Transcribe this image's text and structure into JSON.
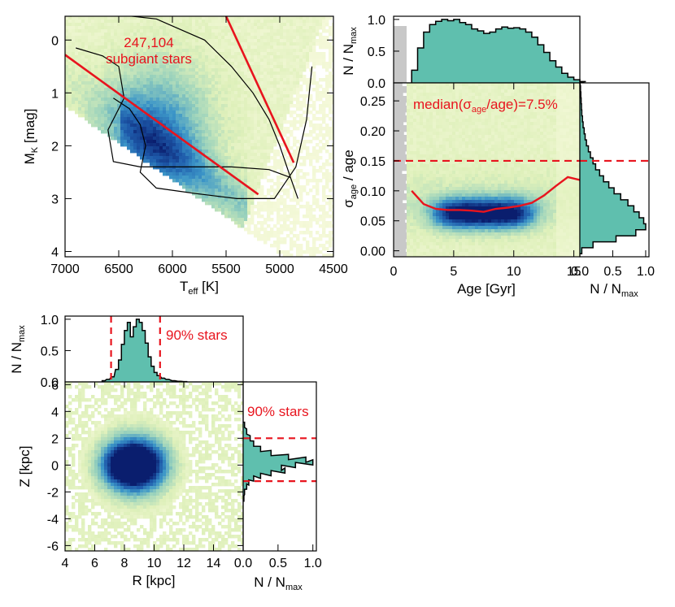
{
  "chart_data": [
    {
      "id": "hr",
      "type": "heatmap",
      "title": "",
      "xlabel": "T",
      "xlabel_sub": "eff",
      "xlabel_unit": " [K]",
      "ylabel": "M",
      "ylabel_sub": "K",
      "ylabel_unit": " [mag]",
      "xlim": [
        7000,
        4500
      ],
      "ylim": [
        4.1,
        -0.45
      ],
      "xticks": [
        7000,
        6500,
        6000,
        5500,
        5000,
        4500
      ],
      "yticks": [
        0,
        1,
        2,
        3,
        4
      ],
      "annotation_count": "247,104",
      "annotation_label": "subgiant stars",
      "selection_lines": [
        {
          "x": [
            7000,
            5200
          ],
          "y": [
            0.28,
            2.92
          ]
        },
        {
          "x": [
            5500,
            4870
          ],
          "y": [
            -0.45,
            2.32
          ]
        }
      ],
      "isochrones": [
        {
          "x": [
            6950,
            6600,
            6150,
            5700,
            5450,
            5250,
            5100,
            5000,
            4900,
            4830
          ],
          "y": [
            -0.45,
            -0.5,
            -0.4,
            0.0,
            0.5,
            1.0,
            1.5,
            2.0,
            2.6,
            3.0
          ]
        },
        {
          "x": [
            6900,
            6650,
            6500,
            6450,
            6600,
            6550,
            6300,
            5900,
            5450,
            5100,
            4900
          ],
          "y": [
            0.15,
            0.3,
            0.5,
            1.1,
            1.7,
            2.3,
            2.4,
            2.4,
            2.4,
            2.45,
            2.6
          ]
        },
        {
          "x": [
            6550,
            6400,
            6300,
            6250,
            6300,
            6150,
            5800,
            5400,
            5050,
            4850,
            4750,
            4700
          ],
          "y": [
            1.1,
            1.3,
            1.6,
            2.0,
            2.5,
            2.8,
            2.9,
            3.0,
            3.0,
            2.4,
            1.5,
            0.5
          ]
        }
      ]
    },
    {
      "id": "age_top",
      "type": "area",
      "ylabel": "N / N",
      "ylabel_sub": "max",
      "xlim": [
        0,
        15.5
      ],
      "ylim": [
        0,
        1.05
      ],
      "yticks": [
        0.0,
        0.5,
        1.0
      ],
      "x": [
        1.5,
        2,
        2.5,
        3,
        3.5,
        4,
        4.5,
        5,
        5.5,
        6,
        6.5,
        7,
        7.5,
        8,
        8.5,
        9,
        9.5,
        10,
        10.5,
        11,
        11.5,
        12,
        12.5,
        13,
        13.5,
        14,
        14.5,
        15,
        15.5
      ],
      "values": [
        0.2,
        0.55,
        0.8,
        0.92,
        0.97,
        1.0,
        0.98,
        1.0,
        0.95,
        0.92,
        0.85,
        0.82,
        0.78,
        0.8,
        0.85,
        0.88,
        0.86,
        0.87,
        0.85,
        0.8,
        0.72,
        0.6,
        0.48,
        0.35,
        0.25,
        0.15,
        0.09,
        0.05,
        0.02
      ]
    },
    {
      "id": "age_err",
      "type": "heatmap",
      "xlabel": "Age [Gyr]",
      "ylabel": "σ",
      "ylabel_sub": "age",
      "ylabel_unit": " / age",
      "xlim": [
        0,
        15.5
      ],
      "ylim": [
        -0.01,
        0.28
      ],
      "xticks": [
        0,
        5,
        10,
        15
      ],
      "xtick_labels": [
        "0",
        "5",
        "10",
        "15"
      ],
      "yticks": [
        0.0,
        0.05,
        0.1,
        0.15,
        0.2,
        0.25
      ],
      "ytick_labels": [
        "0.00",
        "0.05",
        "0.10",
        "0.15",
        "0.20",
        "0.25"
      ],
      "threshold": 0.15,
      "median_label_pre": "median(σ",
      "median_label_sub": "age",
      "median_label_post": "/age)=7.5%",
      "median_curve": {
        "x": [
          1.5,
          2.5,
          3.5,
          4.5,
          5.5,
          6.5,
          7.5,
          8.5,
          9.5,
          10.5,
          11.5,
          12.5,
          13.5,
          14.5,
          15.5
        ],
        "y": [
          0.1,
          0.078,
          0.07,
          0.068,
          0.068,
          0.067,
          0.065,
          0.07,
          0.072,
          0.075,
          0.08,
          0.092,
          0.108,
          0.123,
          0.118
        ]
      }
    },
    {
      "id": "age_right",
      "type": "area",
      "xlabel": "N / N",
      "xlabel_sub": "max",
      "xlim": [
        0,
        1.05
      ],
      "xticks": [
        0.0,
        0.5,
        1.0
      ],
      "xtick_labels": [
        "0.0",
        "0.5",
        "1.0"
      ],
      "y": [
        0.0,
        0.01,
        0.02,
        0.03,
        0.04,
        0.05,
        0.06,
        0.07,
        0.08,
        0.09,
        0.1,
        0.11,
        0.12,
        0.13,
        0.14,
        0.15,
        0.16,
        0.17,
        0.18,
        0.19,
        0.2,
        0.21,
        0.22,
        0.23,
        0.24,
        0.25,
        0.26,
        0.27
      ],
      "values": [
        0.03,
        0.2,
        0.55,
        0.85,
        1.0,
        0.97,
        0.9,
        0.82,
        0.73,
        0.62,
        0.52,
        0.44,
        0.36,
        0.3,
        0.24,
        0.2,
        0.16,
        0.13,
        0.1,
        0.08,
        0.065,
        0.05,
        0.04,
        0.03,
        0.025,
        0.02,
        0.015,
        0.01
      ]
    },
    {
      "id": "r_top",
      "type": "area",
      "ylabel": "N / N",
      "ylabel_sub": "max",
      "xlim": [
        4,
        16
      ],
      "ylim": [
        0,
        1.05
      ],
      "yticks": [
        0.0,
        0.5,
        1.0
      ],
      "percent_label": "90% stars",
      "bounds": [
        7.1,
        10.4
      ],
      "x": [
        6.5,
        6.8,
        7.1,
        7.4,
        7.6,
        7.8,
        8.0,
        8.2,
        8.4,
        8.6,
        8.8,
        9.0,
        9.2,
        9.4,
        9.6,
        9.8,
        10.0,
        10.2,
        10.5,
        10.8,
        11.2,
        11.6,
        12.0
      ],
      "values": [
        0.02,
        0.04,
        0.08,
        0.2,
        0.35,
        0.6,
        0.82,
        0.95,
        0.72,
        0.88,
        1.0,
        0.95,
        0.82,
        0.62,
        0.4,
        0.25,
        0.15,
        0.1,
        0.06,
        0.04,
        0.02,
        0.01,
        0.005
      ]
    },
    {
      "id": "rz",
      "type": "heatmap",
      "xlabel": "R [kpc]",
      "ylabel": "Z [kpc]",
      "xlim": [
        4,
        16
      ],
      "ylim": [
        -6.4,
        6.2
      ],
      "xticks": [
        4,
        6,
        8,
        10,
        12,
        14
      ],
      "yticks": [
        6,
        4,
        2,
        0,
        -2,
        -4,
        -6
      ]
    },
    {
      "id": "z_right",
      "type": "area",
      "xlabel": "N / N",
      "xlabel_sub": "max",
      "xlim": [
        0,
        1.05
      ],
      "xticks": [
        0.0,
        0.5,
        1.0
      ],
      "xtick_labels": [
        "0.0",
        "0.5",
        "1.0"
      ],
      "percent_label": "90% stars",
      "bounds": [
        2.0,
        -1.2
      ],
      "y": [
        3.0,
        2.5,
        2.0,
        1.6,
        1.2,
        0.9,
        0.6,
        0.4,
        0.2,
        0.0,
        -0.2,
        -0.4,
        -0.6,
        -0.8,
        -1.0,
        -1.3,
        -1.6,
        -2.0,
        -2.5
      ],
      "values": [
        0.02,
        0.05,
        0.1,
        0.15,
        0.25,
        0.4,
        0.65,
        0.9,
        1.0,
        0.75,
        0.55,
        0.6,
        0.4,
        0.25,
        0.15,
        0.08,
        0.05,
        0.02,
        0.01
      ]
    }
  ]
}
